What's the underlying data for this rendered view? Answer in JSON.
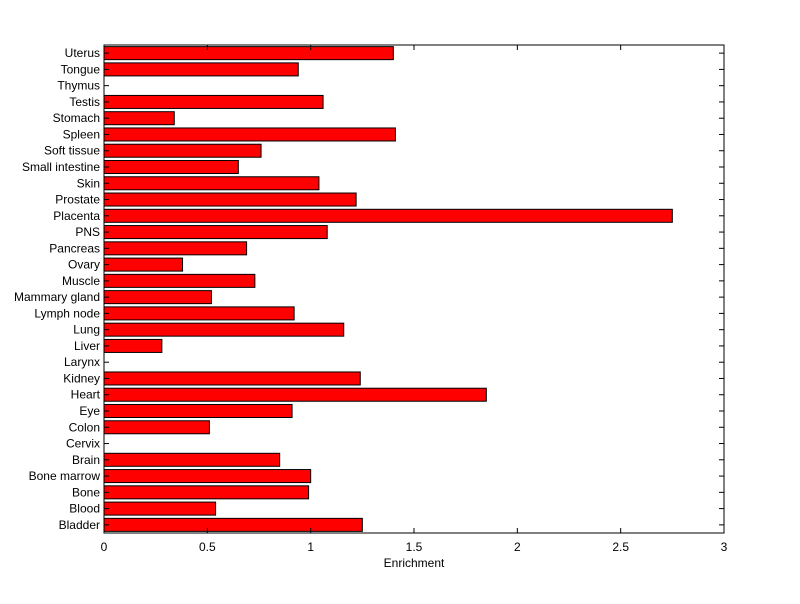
{
  "chart_data": {
    "type": "bar",
    "orientation": "horizontal",
    "title": "",
    "xlabel": "Enrichment",
    "ylabel": "",
    "xlim": [
      0,
      3
    ],
    "xticks": [
      0,
      0.5,
      1,
      1.5,
      2,
      2.5,
      3
    ],
    "xtick_labels": [
      "0",
      "0.5",
      "1",
      "1.5",
      "2",
      "2.5",
      "3"
    ],
    "grid": false,
    "legend": "none",
    "categories": [
      "Uterus",
      "Tongue",
      "Thymus",
      "Testis",
      "Stomach",
      "Spleen",
      "Soft tissue",
      "Small intestine",
      "Skin",
      "Prostate",
      "Placenta",
      "PNS",
      "Pancreas",
      "Ovary",
      "Muscle",
      "Mammary gland",
      "Lymph node",
      "Lung",
      "Liver",
      "Larynx",
      "Kidney",
      "Heart",
      "Eye",
      "Colon",
      "Cervix",
      "Brain",
      "Bone marrow",
      "Bone",
      "Blood",
      "Bladder"
    ],
    "values": [
      1.4,
      0.94,
      0.0,
      1.06,
      0.34,
      1.41,
      0.76,
      0.65,
      1.04,
      1.22,
      2.75,
      1.08,
      0.69,
      0.38,
      0.73,
      0.52,
      0.92,
      1.16,
      0.28,
      0.0,
      1.24,
      1.85,
      0.91,
      0.51,
      0.0,
      0.85,
      1.0,
      0.99,
      0.54,
      1.25
    ],
    "bar_color": "#ff0000",
    "bar_edge_color": "#000000"
  }
}
